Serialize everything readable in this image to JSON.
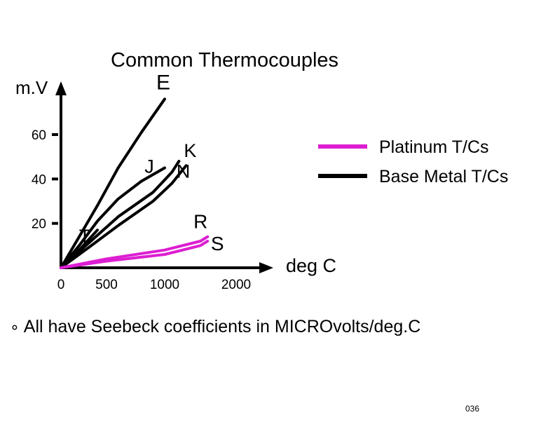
{
  "slide": {
    "bullet_icon": "oval-bullet-icon",
    "bullet_text": "All have Seebeck coefficients in MICROvolts/deg.C",
    "slide_number": "036"
  },
  "colors": {
    "platinum": "#dd1ed2",
    "base_metal": "#000000"
  },
  "chart_data": {
    "type": "line",
    "title": "Common Thermocouples",
    "xlabel": "deg C",
    "ylabel": "m.V",
    "x_ticks": [
      0,
      500,
      1000,
      2000
    ],
    "x_tick_labels": [
      "0",
      "500",
      "1000",
      "2000"
    ],
    "y_ticks": [
      20,
      40,
      60
    ],
    "y_tick_labels": [
      "20",
      "40",
      "60"
    ],
    "xlim": [
      0,
      2200
    ],
    "ylim": [
      0,
      80
    ],
    "x_axis_scale": "non-uniform (tick labels as printed)",
    "legend": {
      "placement": "top-right",
      "entries": [
        {
          "label": "Platinum  T/Cs",
          "color": "#dd1ed2"
        },
        {
          "label": "Base Metal T/Cs",
          "color": "#000000"
        }
      ]
    },
    "series": [
      {
        "name": "E",
        "group": "Base Metal T/Cs",
        "color": "#000000",
        "points": [
          [
            0,
            0
          ],
          [
            200,
            14
          ],
          [
            400,
            28
          ],
          [
            600,
            45
          ],
          [
            800,
            61
          ],
          [
            1000,
            76
          ]
        ]
      },
      {
        "name": "J",
        "group": "Base Metal T/Cs",
        "color": "#000000",
        "points": [
          [
            0,
            0
          ],
          [
            200,
            10
          ],
          [
            400,
            21
          ],
          [
            600,
            31
          ],
          [
            800,
            39
          ],
          [
            1000,
            45
          ]
        ]
      },
      {
        "name": "K",
        "group": "Base Metal T/Cs",
        "color": "#000000",
        "points": [
          [
            0,
            0
          ],
          [
            300,
            11
          ],
          [
            600,
            23
          ],
          [
            900,
            34
          ],
          [
            1100,
            43
          ],
          [
            1200,
            48
          ]
        ]
      },
      {
        "name": "N",
        "group": "Base Metal T/Cs",
        "color": "#000000",
        "points": [
          [
            0,
            0
          ],
          [
            300,
            9
          ],
          [
            600,
            19
          ],
          [
            900,
            30
          ],
          [
            1100,
            38
          ],
          [
            1300,
            46
          ]
        ]
      },
      {
        "name": "T",
        "group": "Base Metal T/Cs",
        "color": "#000000",
        "points": [
          [
            0,
            0
          ],
          [
            200,
            8
          ],
          [
            400,
            17
          ]
        ]
      },
      {
        "name": "R",
        "group": "Platinum  T/Cs",
        "color": "#dd1ed2",
        "points": [
          [
            0,
            0
          ],
          [
            500,
            4
          ],
          [
            1000,
            8
          ],
          [
            1500,
            12
          ],
          [
            1600,
            14
          ]
        ]
      },
      {
        "name": "S",
        "group": "Platinum  T/Cs",
        "color": "#dd1ed2",
        "points": [
          [
            0,
            0
          ],
          [
            500,
            3
          ],
          [
            1000,
            6
          ],
          [
            1500,
            10
          ],
          [
            1600,
            12
          ]
        ]
      }
    ]
  }
}
